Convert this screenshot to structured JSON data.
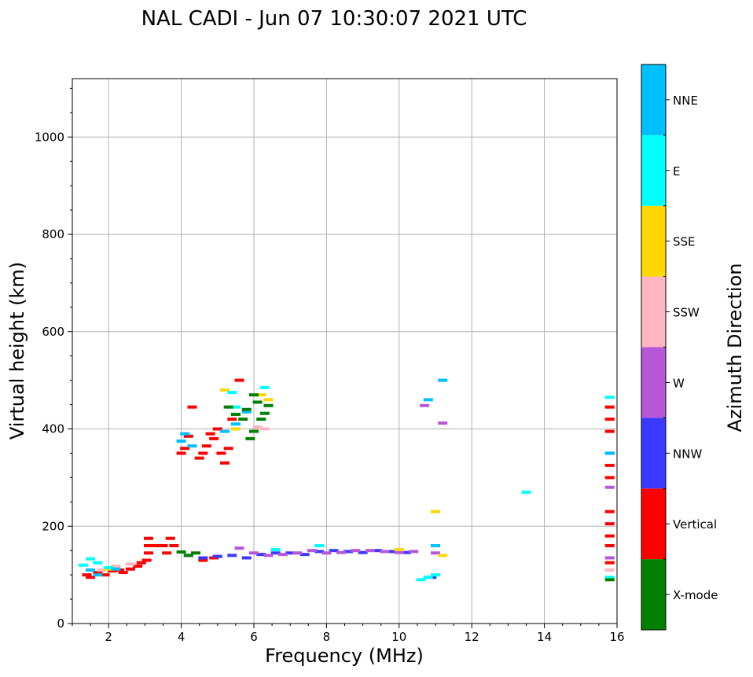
{
  "chart_data": {
    "type": "scatter",
    "title": "NAL CADI - Jun 07 10:30:07 2021 UTC",
    "xlabel": "Frequency (MHz)",
    "ylabel": "Virtual height (km)",
    "xlim": [
      1,
      16
    ],
    "ylim": [
      0,
      1120
    ],
    "x_ticks": [
      2,
      4,
      6,
      8,
      10,
      12,
      14,
      16
    ],
    "y_ticks": [
      0,
      200,
      400,
      600,
      800,
      1000
    ],
    "grid": true,
    "colorbar": {
      "label": "Azimuth Direction",
      "categories": [
        {
          "name": "X-mode",
          "color": "#008000"
        },
        {
          "name": "Vertical",
          "color": "#ff0000"
        },
        {
          "name": "NNW",
          "color": "#3a3aff"
        },
        {
          "name": "W",
          "color": "#b657d8"
        },
        {
          "name": "SSW",
          "color": "#ffb6c1"
        },
        {
          "name": "SSE",
          "color": "#ffd700"
        },
        {
          "name": "E",
          "color": "#00ffff"
        },
        {
          "name": "NNE",
          "color": "#00bfff"
        }
      ]
    },
    "series": [
      {
        "name": "Vertical",
        "points": [
          [
            1.4,
            100
          ],
          [
            1.5,
            95
          ],
          [
            1.7,
            105
          ],
          [
            1.9,
            100
          ],
          [
            2.1,
            108
          ],
          [
            2.3,
            110
          ],
          [
            2.4,
            105
          ],
          [
            2.6,
            112
          ],
          [
            2.8,
            118
          ],
          [
            2.9,
            125
          ],
          [
            3.05,
            130
          ],
          [
            3.1,
            145
          ],
          [
            3.1,
            160
          ],
          [
            3.1,
            175
          ],
          [
            3.3,
            160
          ],
          [
            3.5,
            160
          ],
          [
            3.6,
            145
          ],
          [
            3.7,
            175
          ],
          [
            3.8,
            160
          ],
          [
            4.0,
            350
          ],
          [
            4.1,
            360
          ],
          [
            4.2,
            385
          ],
          [
            4.3,
            445
          ],
          [
            4.5,
            340
          ],
          [
            4.6,
            350
          ],
          [
            4.7,
            365
          ],
          [
            4.8,
            390
          ],
          [
            4.9,
            380
          ],
          [
            5.0,
            400
          ],
          [
            5.1,
            350
          ],
          [
            5.2,
            330
          ],
          [
            5.3,
            360
          ],
          [
            5.4,
            420
          ],
          [
            5.6,
            500
          ],
          [
            4.6,
            130
          ],
          [
            4.9,
            135
          ],
          [
            15.8,
            445
          ],
          [
            15.8,
            420
          ],
          [
            15.8,
            395
          ],
          [
            15.8,
            325
          ],
          [
            15.8,
            300
          ],
          [
            15.8,
            230
          ],
          [
            15.8,
            205
          ],
          [
            15.8,
            180
          ],
          [
            15.8,
            160
          ],
          [
            15.8,
            125
          ]
        ]
      },
      {
        "name": "NNW",
        "points": [
          [
            4.2,
            140
          ],
          [
            4.6,
            135
          ],
          [
            5.0,
            138
          ],
          [
            5.4,
            140
          ],
          [
            5.8,
            135
          ],
          [
            6.2,
            142
          ],
          [
            6.6,
            145
          ],
          [
            7.0,
            145
          ],
          [
            7.4,
            142
          ],
          [
            7.8,
            148
          ],
          [
            8.2,
            150
          ],
          [
            8.6,
            148
          ],
          [
            9.0,
            146
          ],
          [
            9.4,
            150
          ],
          [
            9.8,
            148
          ],
          [
            10.2,
            146
          ],
          [
            10.9,
            95
          ],
          [
            15.8,
            350
          ]
        ]
      },
      {
        "name": "W",
        "points": [
          [
            5.6,
            155
          ],
          [
            6.0,
            145
          ],
          [
            6.4,
            140
          ],
          [
            6.8,
            142
          ],
          [
            7.2,
            145
          ],
          [
            7.6,
            150
          ],
          [
            8.0,
            145
          ],
          [
            8.4,
            146
          ],
          [
            8.8,
            150
          ],
          [
            9.2,
            150
          ],
          [
            9.6,
            148
          ],
          [
            10.0,
            146
          ],
          [
            10.4,
            148
          ],
          [
            10.7,
            448
          ],
          [
            11.0,
            145
          ],
          [
            11.2,
            412
          ],
          [
            15.8,
            280
          ],
          [
            15.8,
            135
          ]
        ]
      },
      {
        "name": "SSW",
        "points": [
          [
            1.8,
            110
          ],
          [
            2.2,
            118
          ],
          [
            2.6,
            122
          ],
          [
            6.1,
            404
          ],
          [
            6.3,
            400
          ],
          [
            15.8,
            110
          ]
        ]
      },
      {
        "name": "SSE",
        "points": [
          [
            2.0,
            112
          ],
          [
            5.2,
            480
          ],
          [
            5.5,
            400
          ],
          [
            6.2,
            470
          ],
          [
            6.4,
            460
          ],
          [
            10.0,
            152
          ],
          [
            11.0,
            230
          ],
          [
            11.2,
            140
          ]
        ]
      },
      {
        "name": "E",
        "points": [
          [
            1.3,
            120
          ],
          [
            1.5,
            133
          ],
          [
            1.7,
            125
          ],
          [
            2.0,
            115
          ],
          [
            5.4,
            475
          ],
          [
            5.5,
            445
          ],
          [
            6.3,
            485
          ],
          [
            6.6,
            152
          ],
          [
            7.8,
            160
          ],
          [
            10.6,
            90
          ],
          [
            10.8,
            95
          ],
          [
            11.0,
            100
          ],
          [
            13.5,
            270
          ],
          [
            15.8,
            465
          ],
          [
            15.8,
            95
          ]
        ]
      },
      {
        "name": "NNE",
        "points": [
          [
            1.5,
            110
          ],
          [
            1.7,
            100
          ],
          [
            2.2,
            112
          ],
          [
            4.0,
            375
          ],
          [
            4.1,
            390
          ],
          [
            4.3,
            365
          ],
          [
            5.2,
            395
          ],
          [
            5.5,
            410
          ],
          [
            5.8,
            435
          ],
          [
            10.8,
            460
          ],
          [
            11.2,
            500
          ],
          [
            11.0,
            160
          ],
          [
            15.8,
            350
          ]
        ]
      },
      {
        "name": "X-mode",
        "points": [
          [
            4.0,
            147
          ],
          [
            4.2,
            140
          ],
          [
            4.4,
            145
          ],
          [
            5.3,
            445
          ],
          [
            5.5,
            430
          ],
          [
            5.7,
            420
          ],
          [
            5.8,
            440
          ],
          [
            5.9,
            380
          ],
          [
            6.0,
            395
          ],
          [
            6.0,
            470
          ],
          [
            6.1,
            455
          ],
          [
            6.2,
            420
          ],
          [
            6.3,
            432
          ],
          [
            6.4,
            448
          ],
          [
            15.8,
            90
          ]
        ]
      }
    ]
  }
}
